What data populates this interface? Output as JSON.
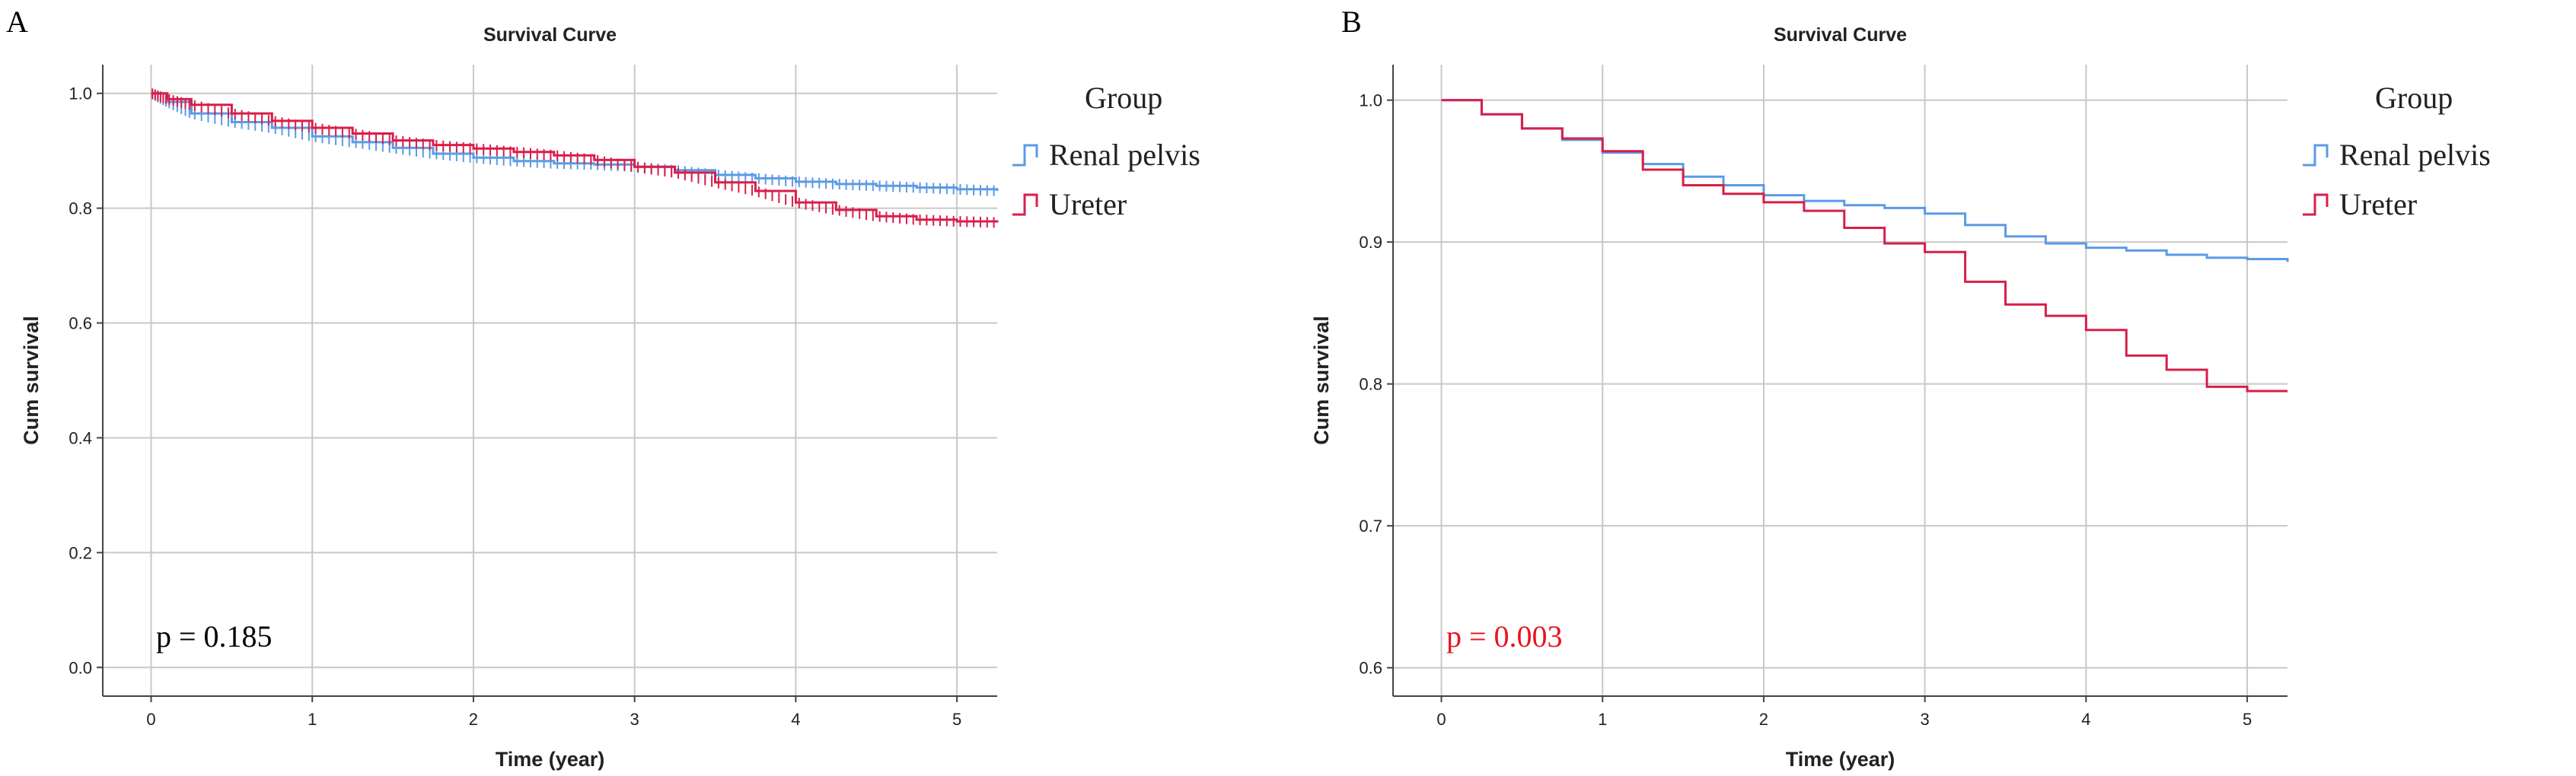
{
  "chart_data": [
    {
      "panel_label": "A",
      "type": "line",
      "subtype": "kaplan-meier",
      "title": "Survival Curve",
      "xlabel": "Time (year)",
      "ylabel": "Cum survival",
      "xlim": [
        -0.3,
        5.25
      ],
      "ylim": [
        -0.05,
        1.05
      ],
      "xticks": [
        0,
        1,
        2,
        3,
        4,
        5
      ],
      "xtick_labels": [
        "0",
        "1",
        "2",
        "3",
        "4",
        "5"
      ],
      "yticks": [
        0.0,
        0.2,
        0.4,
        0.6,
        0.8,
        1.0
      ],
      "ytick_labels": [
        "0.0",
        "0.2",
        "0.4",
        "0.6",
        "0.8",
        "1.0"
      ],
      "grid": true,
      "legend_title": "Group",
      "legend_position": "right",
      "annotation": "p = 0.185",
      "annotation_color": "#000000",
      "series": [
        {
          "name": "Renal pelvis",
          "color": "#5b9be6",
          "x": [
            0,
            0.1,
            0.25,
            0.5,
            0.75,
            1.0,
            1.25,
            1.5,
            1.75,
            2.0,
            2.25,
            2.5,
            2.75,
            3.0,
            3.25,
            3.5,
            3.75,
            4.0,
            4.25,
            4.5,
            4.75,
            5.0,
            5.25
          ],
          "y": [
            1.0,
            0.985,
            0.965,
            0.95,
            0.94,
            0.925,
            0.915,
            0.905,
            0.895,
            0.888,
            0.882,
            0.878,
            0.876,
            0.872,
            0.866,
            0.858,
            0.852,
            0.846,
            0.842,
            0.839,
            0.836,
            0.833,
            0.83
          ]
        },
        {
          "name": "Ureter",
          "color": "#d81e4a",
          "x": [
            0,
            0.1,
            0.25,
            0.5,
            0.75,
            1.0,
            1.25,
            1.5,
            1.75,
            2.0,
            2.25,
            2.5,
            2.75,
            3.0,
            3.25,
            3.5,
            3.75,
            4.0,
            4.25,
            4.5,
            4.75,
            5.0,
            5.25
          ],
          "y": [
            1.0,
            0.99,
            0.98,
            0.965,
            0.952,
            0.94,
            0.93,
            0.918,
            0.91,
            0.904,
            0.898,
            0.892,
            0.884,
            0.872,
            0.862,
            0.845,
            0.83,
            0.81,
            0.797,
            0.786,
            0.78,
            0.777,
            0.775
          ]
        }
      ]
    },
    {
      "panel_label": "B",
      "type": "line",
      "subtype": "kaplan-meier",
      "title": "Survival Curve",
      "xlabel": "Time (year)",
      "ylabel": "Cum survival",
      "xlim": [
        -0.3,
        5.25
      ],
      "ylim": [
        0.58,
        1.025
      ],
      "xticks": [
        0,
        1,
        2,
        3,
        4,
        5
      ],
      "xtick_labels": [
        "0",
        "1",
        "2",
        "3",
        "4",
        "5"
      ],
      "yticks": [
        0.6,
        0.7,
        0.8,
        0.9,
        1.0
      ],
      "ytick_labels": [
        "0.6",
        "0.7",
        "0.8",
        "0.9",
        "1.0"
      ],
      "grid": true,
      "legend_title": "Group",
      "legend_position": "right",
      "annotation": "p = 0.003",
      "annotation_color": "#e8141e",
      "series": [
        {
          "name": "Renal pelvis",
          "color": "#5b9be6",
          "x": [
            0,
            0.25,
            0.5,
            0.75,
            1.0,
            1.25,
            1.5,
            1.75,
            2.0,
            2.25,
            2.5,
            2.75,
            3.0,
            3.25,
            3.5,
            3.75,
            4.0,
            4.25,
            4.5,
            4.75,
            5.0,
            5.25
          ],
          "y": [
            1.0,
            0.99,
            0.98,
            0.972,
            0.963,
            0.955,
            0.946,
            0.94,
            0.933,
            0.929,
            0.926,
            0.924,
            0.92,
            0.912,
            0.904,
            0.899,
            0.896,
            0.894,
            0.891,
            0.889,
            0.888,
            0.886
          ]
        },
        {
          "name": "Ureter",
          "color": "#d81e4a",
          "x": [
            0,
            0.25,
            0.5,
            0.75,
            1.0,
            1.25,
            1.5,
            1.75,
            2.0,
            2.25,
            2.5,
            2.75,
            3.0,
            3.25,
            3.5,
            3.75,
            4.0,
            4.25,
            4.5,
            4.75,
            5.0,
            5.25
          ],
          "y": [
            1.0,
            0.99,
            0.98,
            0.973,
            0.964,
            0.951,
            0.94,
            0.934,
            0.928,
            0.922,
            0.91,
            0.899,
            0.893,
            0.872,
            0.856,
            0.848,
            0.838,
            0.82,
            0.81,
            0.798,
            0.795,
            0.795
          ]
        }
      ]
    }
  ]
}
